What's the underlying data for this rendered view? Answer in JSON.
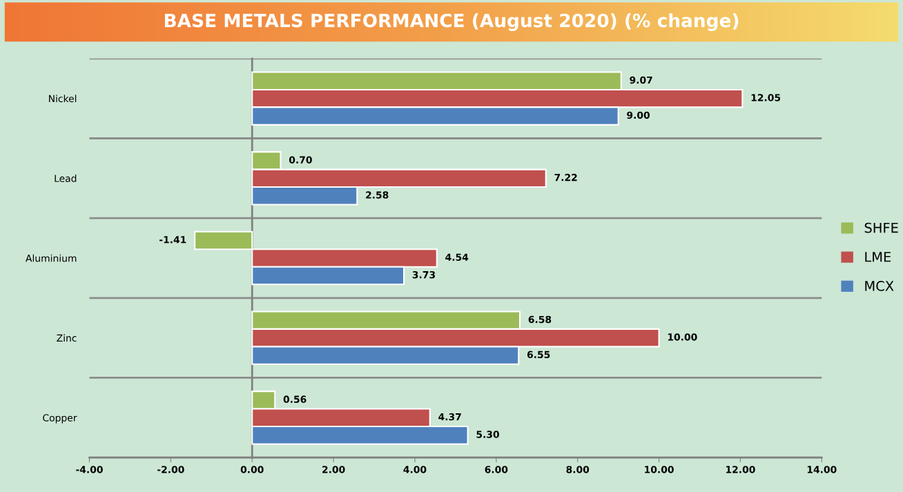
{
  "chart_data": {
    "type": "bar",
    "orientation": "horizontal",
    "title": "BASE METALS PERFORMANCE (August 2020) (% change)",
    "categories": [
      "Nickel",
      "Lead",
      "Aluminium",
      "Zinc",
      "Copper"
    ],
    "series": [
      {
        "name": "SHFE",
        "color": "#9bbb59",
        "values": [
          9.07,
          0.7,
          -1.41,
          6.58,
          0.56
        ],
        "value_labels": [
          "9.07",
          "0.70",
          "-1.41",
          "6.58",
          "0.56"
        ]
      },
      {
        "name": "LME",
        "color": "#c0504d",
        "values": [
          12.05,
          7.22,
          4.54,
          10.0,
          4.37
        ],
        "value_labels": [
          "12.05",
          "7.22",
          "4.54",
          "10.00",
          "4.37"
        ]
      },
      {
        "name": "MCX",
        "color": "#4f81bd",
        "values": [
          9.0,
          2.58,
          3.73,
          6.55,
          5.3
        ],
        "value_labels": [
          "9.00",
          "2.58",
          "3.73",
          "6.55",
          "5.30"
        ]
      }
    ],
    "xlim": [
      -4,
      14
    ],
    "xticks": [
      {
        "value": -4,
        "label": "-4.00"
      },
      {
        "value": -2,
        "label": "-2.00"
      },
      {
        "value": 0,
        "label": "0.00"
      },
      {
        "value": 2,
        "label": "2.00"
      },
      {
        "value": 4,
        "label": "4.00"
      },
      {
        "value": 6,
        "label": "6.00"
      },
      {
        "value": 8,
        "label": "8.00"
      },
      {
        "value": 10,
        "label": "10.00"
      },
      {
        "value": 12,
        "label": "12.00"
      },
      {
        "value": 14,
        "label": "14.00"
      }
    ],
    "grid": "y",
    "legend": "right"
  }
}
